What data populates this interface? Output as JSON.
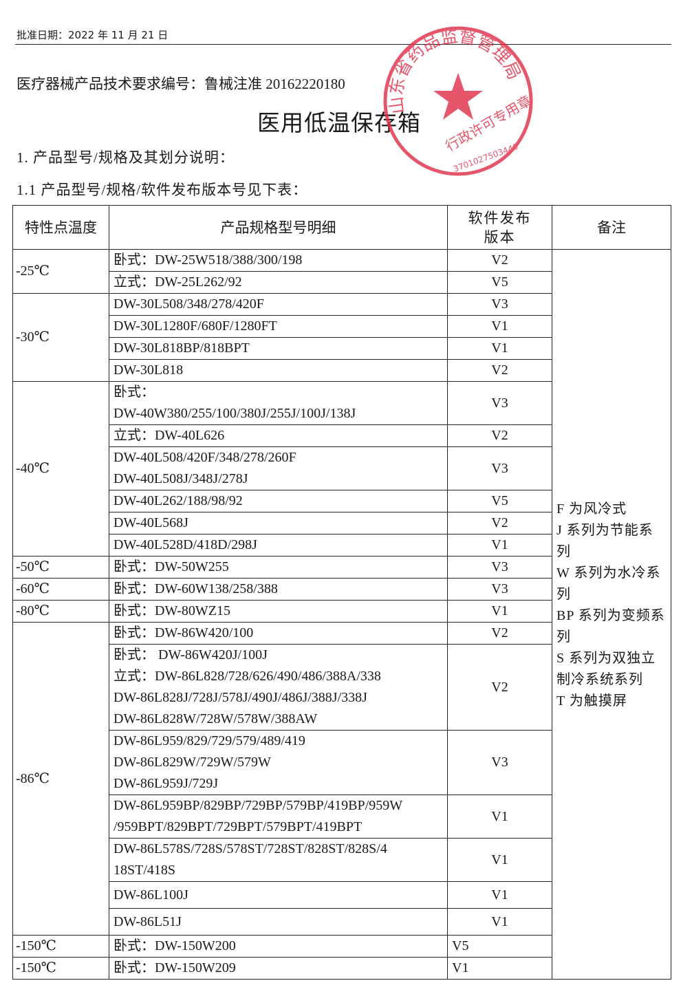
{
  "header": {
    "approval_date": "批准日期：2022 年 11 月 21 日",
    "doc_number": "医疗器械产品技术要求编号：鲁械注准 20162220180",
    "title": "医用低温保存箱",
    "section_1": "1. 产品型号/规格及其划分说明：",
    "section_1_1": "1.1 产品型号/规格/软件发布版本号见下表："
  },
  "stamp": {
    "top_text": "山东省药品监督管理局",
    "bottom_text": "行政许可专用章",
    "code": "3701027503440",
    "color": "#e0314a"
  },
  "table": {
    "headers": [
      "特性点温度",
      "产品规格型号明细",
      "软件发布版本",
      "备注"
    ],
    "note_lines": [
      "F 为风冷式",
      "J 系列为节能系列",
      "W 系列为水冷系列",
      "BP 系列为变频系列",
      "S 系列为双独立制冷系统系列",
      "T 为触摸屏"
    ],
    "groups": [
      {
        "temp": "-25℃",
        "rows": [
          {
            "spec": [
              "卧式：DW-25W518/388/300/198"
            ],
            "ver": "V2"
          },
          {
            "spec": [
              "立式：DW-25L262/92"
            ],
            "ver": "V5"
          }
        ]
      },
      {
        "temp": "-30℃",
        "rows": [
          {
            "spec": [
              "DW-30L508/348/278/420F"
            ],
            "ver": "V3"
          },
          {
            "spec": [
              "DW-30L1280F/680F/1280FT"
            ],
            "ver": "V1"
          },
          {
            "spec": [
              "DW-30L818BP/818BPT"
            ],
            "ver": "V1"
          },
          {
            "spec": [
              "DW-30L818"
            ],
            "ver": "V2"
          }
        ]
      },
      {
        "temp": "-40℃",
        "rows": [
          {
            "spec": [
              "卧式：",
              "DW-40W380/255/100/380J/255J/100J/138J"
            ],
            "ver": "V3"
          },
          {
            "spec": [
              "立式：DW-40L626"
            ],
            "ver": "V2"
          },
          {
            "spec": [
              "DW-40L508/420F/348/278/260F",
              "DW-40L508J/348J/278J"
            ],
            "ver": "V3"
          },
          {
            "spec": [
              "DW-40L262/188/98/92"
            ],
            "ver": "V5"
          },
          {
            "spec": [
              "DW-40L568J"
            ],
            "ver": "V2"
          },
          {
            "spec": [
              "DW-40L528D/418D/298J"
            ],
            "ver": "V1"
          }
        ]
      },
      {
        "temp": "-50℃",
        "rows": [
          {
            "spec": [
              "卧式：DW-50W255"
            ],
            "ver": "V3"
          }
        ]
      },
      {
        "temp": "-60℃",
        "rows": [
          {
            "spec": [
              "卧式：DW-60W138/258/388"
            ],
            "ver": "V3"
          }
        ]
      },
      {
        "temp": "-80℃",
        "rows": [
          {
            "spec": [
              "卧式：DW-80WZ15"
            ],
            "ver": "V1"
          }
        ]
      },
      {
        "temp": "-86℃",
        "rows": [
          {
            "spec": [
              "卧式：DW-86W420/100"
            ],
            "ver": "V2"
          },
          {
            "spec": [
              "卧式：  DW-86W420J/100J",
              "立式：DW-86L828/728/626/490/486/388A/338",
              "DW-86L828J/728J/578J/490J/486J/388J/338J",
              "DW-86L828W/728W/578W/388AW"
            ],
            "ver": "V2"
          },
          {
            "spec": [
              "DW-86L959/829/729/579/489/419",
              "DW-86L829W/729W/579W",
              "DW-86L959J/729J"
            ],
            "ver": "V3"
          },
          {
            "spec": [
              "DW-86L959BP/829BP/729BP/579BP/419BP/959W",
              "/959BPT/829BPT/729BPT/579BPT/419BPT"
            ],
            "ver": "V1"
          },
          {
            "spec": [
              "DW-86L578S/728S/578ST/728ST/828ST/828S/4",
              "18ST/418S"
            ],
            "ver": "V1"
          },
          {
            "spec": [
              "DW-86L100J"
            ],
            "ver": "V1"
          },
          {
            "spec": [
              "DW-86L51J"
            ],
            "ver": "V1"
          }
        ]
      },
      {
        "temp": "-150℃",
        "rows": [
          {
            "spec": [
              "卧式：DW-150W200"
            ],
            "ver": "V5"
          }
        ]
      },
      {
        "temp": "-150℃",
        "rows": [
          {
            "spec": [
              "卧式：DW-150W209"
            ],
            "ver": "V1"
          }
        ]
      }
    ]
  }
}
